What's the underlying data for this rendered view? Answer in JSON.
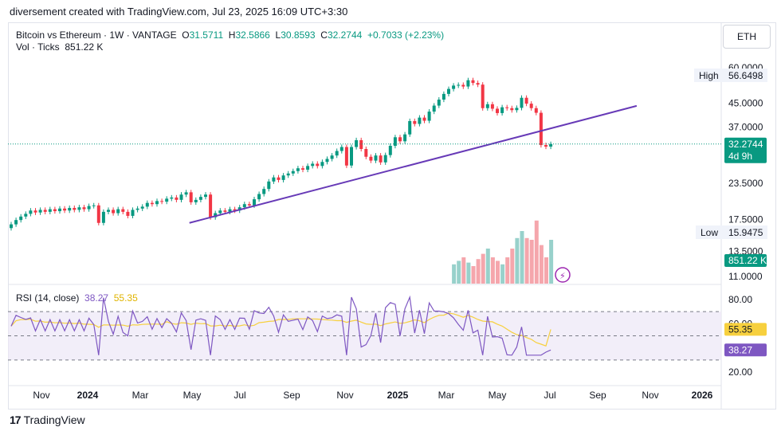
{
  "header": {
    "attribution": "diversement created with TradingView.com, Jul 23, 2025 16:09 UTC+3:30"
  },
  "legend": {
    "symbol": "Bitcoin vs Ethereum · 1W · VANTAGE",
    "o_label": "O",
    "o_value": "31.5711",
    "h_label": "H",
    "h_value": "32.5866",
    "l_label": "L",
    "l_value": "30.8593",
    "c_label": "C",
    "c_value": "32.2744",
    "change": "+0.7033 (+2.23%)",
    "vol_label": "Vol · Ticks",
    "vol_value": "851.22 K"
  },
  "symbol_box": "ETH",
  "rsi_legend": {
    "label": "RSI (14, close)",
    "rsi_value": "38.27",
    "ma_value": "55.35"
  },
  "footer": {
    "brand": "TradingView",
    "logo_text": "17"
  },
  "colors": {
    "up": "#089981",
    "down": "#f23645",
    "vol_up": "#98d1cb",
    "vol_down": "#f5a6ac",
    "trendline": "#673ab7",
    "rsi": "#7e57c2",
    "rsi_ma": "#f7d03e",
    "rsi_band": "#ede7f6"
  },
  "chart_data": {
    "type": "candlestick",
    "timeframe": "1W",
    "price_scale": "log",
    "price_ticks": [
      60.0,
      45.0,
      37.0,
      23.5,
      17.5,
      13.5,
      11.0
    ],
    "price_tick_labels": [
      "60.0000",
      "45.0000",
      "37.0000",
      "23.5000",
      "17.5000",
      "13.5000",
      "11.0000"
    ],
    "x_labels": [
      "Nov",
      "2024",
      "Mar",
      "May",
      "Jul",
      "Sep",
      "Nov",
      "2025",
      "Mar",
      "May",
      "Jul",
      "Sep",
      "Nov",
      "2026"
    ],
    "high_label": "High",
    "high_value": "56.6498",
    "low_label": "Low",
    "low_value": "15.9475",
    "last_price": "32.2744",
    "countdown": "4d 9h",
    "volume_label": "851.22 K",
    "closes": [
      16.8,
      17.4,
      17.9,
      18.3,
      18.8,
      18.5,
      18.9,
      18.6,
      19.0,
      18.7,
      19.1,
      18.8,
      19.2,
      18.9,
      19.3,
      19.0,
      19.5,
      19.6,
      17.0,
      18.6,
      18.9,
      18.4,
      19.0,
      18.6,
      18.0,
      18.9,
      19.1,
      19.4,
      20.0,
      19.8,
      20.3,
      20.2,
      20.7,
      20.9,
      20.5,
      21.4,
      21.8,
      20.1,
      20.5,
      21.0,
      21.4,
      17.8,
      18.4,
      18.8,
      18.6,
      19.0,
      18.8,
      19.3,
      19.8,
      19.6,
      20.6,
      21.5,
      22.4,
      23.8,
      24.6,
      24.1,
      25.0,
      25.4,
      25.9,
      26.5,
      26.2,
      27.0,
      27.5,
      27.0,
      27.9,
      28.6,
      29.4,
      30.5,
      31.5,
      27.1,
      31.5,
      33.3,
      31.0,
      29.1,
      28.2,
      29.4,
      27.8,
      29.5,
      31.8,
      34.1,
      33.0,
      34.9,
      38.9,
      38.0,
      40.0,
      39.0,
      42.0,
      44.1,
      46.3,
      48.5,
      50.5,
      51.9,
      52.2,
      51.5,
      54.2,
      53.0,
      52.3,
      43.2,
      44.6,
      43.0,
      41.5,
      43.5,
      43.2,
      42.5,
      43.3,
      47.0,
      44.8,
      43.2,
      41.6,
      32.0,
      31.6,
      32.27
    ],
    "volume": [
      0,
      0,
      0,
      0,
      0,
      0,
      0,
      0,
      0,
      0,
      0,
      0,
      0,
      0,
      0,
      0,
      0,
      0,
      0,
      0,
      0,
      0,
      0,
      0,
      0,
      0,
      0,
      0,
      0,
      0,
      0,
      0,
      0,
      0,
      0,
      0,
      0,
      0,
      0,
      0,
      0,
      0,
      0,
      0,
      0,
      0,
      0,
      0,
      0,
      0,
      0,
      0,
      0,
      0,
      0,
      0,
      0,
      0,
      0,
      0,
      0,
      0,
      0,
      0,
      0,
      0,
      0,
      0,
      0,
      0,
      0,
      0,
      0,
      0,
      0,
      0,
      0,
      0,
      0,
      0,
      0,
      0,
      0,
      0,
      0,
      0,
      0,
      0,
      0,
      0,
      0,
      0,
      0,
      0,
      0,
      0,
      0,
      0,
      0,
      0,
      0,
      0,
      0,
      0,
      0,
      0,
      0,
      0,
      0,
      0,
      0,
      0
    ],
    "trendline": [
      [
        37,
        17.0
      ],
      [
        129,
        44.0
      ]
    ],
    "rsi": {
      "ticks": [
        80.0,
        60.0,
        20.0
      ],
      "tick_labels": [
        "80.00",
        "60.00",
        "20.00"
      ],
      "overbought": 70,
      "mid": 50,
      "oversold": 30,
      "last_rsi": "38.27",
      "last_ma": "55.35"
    }
  }
}
